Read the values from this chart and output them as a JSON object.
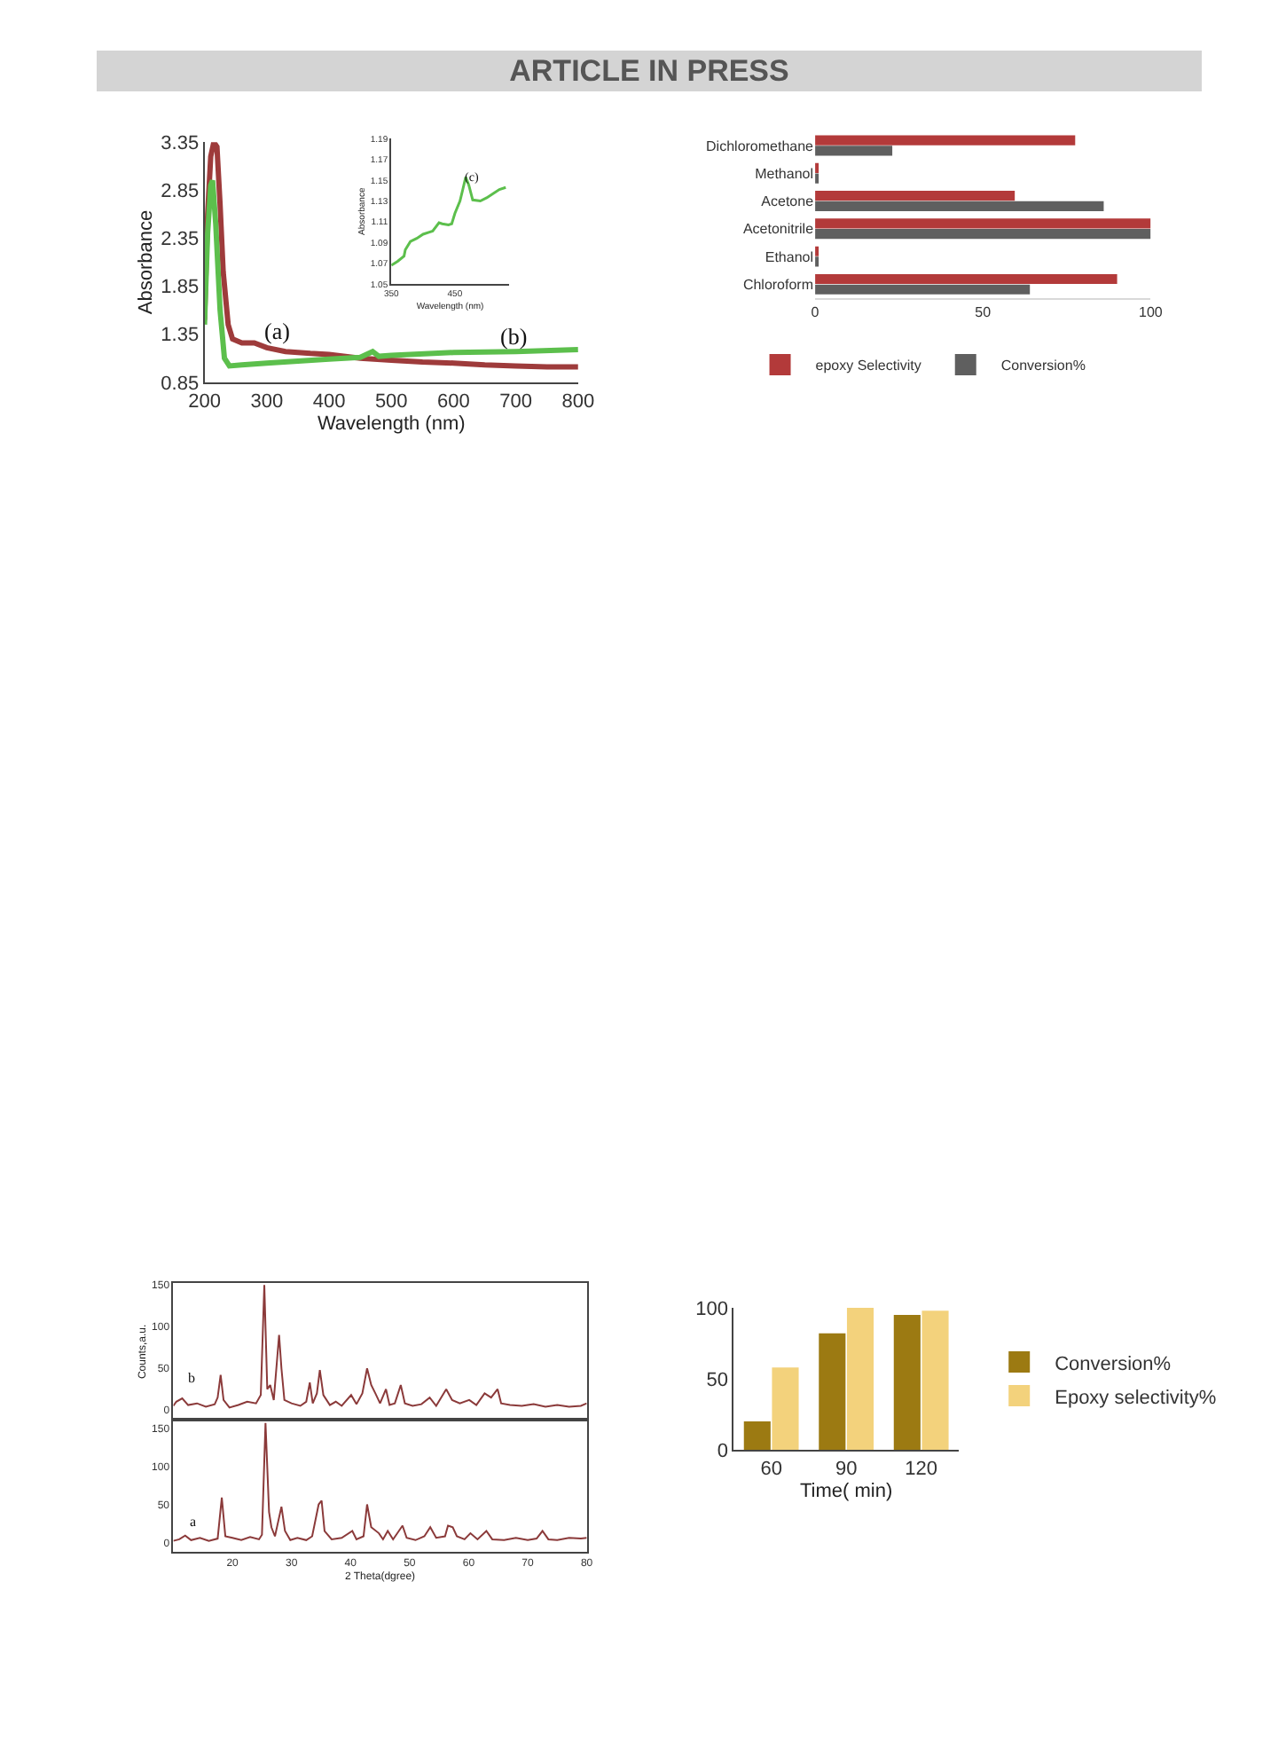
{
  "chart_data": [
    {
      "type": "line",
      "xlabel": "Wavelength (nm)",
      "ylabel": "Absorbance",
      "xlim": [
        200,
        800
      ],
      "ylim": [
        0.85,
        3.35
      ],
      "xticks": [
        200,
        300,
        400,
        500,
        600,
        700,
        800
      ],
      "yticks": [
        0.85,
        1.35,
        1.85,
        2.35,
        2.85,
        3.35
      ],
      "grid": false,
      "legend": false,
      "annotations": [
        "ARTICLE IN PRESS",
        "(a)",
        "(b)"
      ],
      "series": [
        {
          "color": "#9e3b3b",
          "x": [
            200,
            205,
            210,
            215,
            220,
            225,
            230,
            238,
            245,
            260,
            280,
            300,
            330,
            370,
            400,
            450,
            500,
            550,
            600,
            650,
            700,
            750,
            800
          ],
          "values": [
            1.5,
            2.6,
            3.2,
            3.35,
            3.3,
            2.7,
            2.0,
            1.45,
            1.3,
            1.26,
            1.26,
            1.21,
            1.17,
            1.15,
            1.14,
            1.1,
            1.08,
            1.06,
            1.05,
            1.03,
            1.02,
            1.01,
            1.01
          ]
        },
        {
          "color": "#5cbf4c",
          "x": [
            200,
            205,
            210,
            213,
            218,
            225,
            232,
            240,
            260,
            300,
            350,
            400,
            450,
            470,
            480,
            500,
            600,
            700,
            800
          ],
          "values": [
            1.45,
            2.4,
            2.9,
            2.95,
            2.5,
            1.6,
            1.1,
            1.02,
            1.03,
            1.05,
            1.07,
            1.09,
            1.11,
            1.17,
            1.12,
            1.13,
            1.16,
            1.17,
            1.19
          ]
        }
      ]
    },
    {
      "type": "line",
      "xlabel": "Wavelength (nm)",
      "ylabel": "Absorbance",
      "xlim": [
        350,
        535
      ],
      "ylim": [
        1.05,
        1.19
      ],
      "xticks": [
        350,
        450
      ],
      "yticks": [
        1.05,
        1.07,
        1.09,
        1.11,
        1.13,
        1.15,
        1.17,
        1.19
      ],
      "grid": false,
      "legend": false,
      "annotations": [
        "(c)"
      ],
      "series": [
        {
          "color": "#5cbf4c",
          "x": [
            350,
            360,
            370,
            372,
            380,
            390,
            400,
            410,
            415,
            425,
            430,
            440,
            445,
            450,
            458,
            462,
            467,
            472,
            478,
            490,
            500,
            510,
            520,
            530
          ],
          "values": [
            1.068,
            1.072,
            1.077,
            1.083,
            1.091,
            1.094,
            1.098,
            1.1,
            1.101,
            1.109,
            1.108,
            1.107,
            1.108,
            1.118,
            1.13,
            1.14,
            1.153,
            1.145,
            1.131,
            1.13,
            1.133,
            1.137,
            1.141,
            1.143
          ]
        }
      ]
    },
    {
      "type": "bar",
      "orientation": "horizontal",
      "categories": [
        "Dichloromethane",
        "Methanol",
        "Acetone",
        "Acetonitrile",
        "Ethanol",
        "Chloroform"
      ],
      "xlim": [
        0,
        100
      ],
      "xticks": [
        0,
        50,
        100
      ],
      "grid": false,
      "legend": "bottom",
      "series": [
        {
          "name": "epoxy Selectivity",
          "color": "#b33a3a",
          "values": [
            77.5,
            1,
            59.5,
            100,
            1,
            90
          ]
        },
        {
          "name": "Conversion%",
          "color": "#5f5f5f",
          "values": [
            23,
            1,
            86,
            100,
            1,
            64
          ]
        }
      ]
    },
    {
      "type": "line",
      "ylabel": "Counts,a.u.",
      "xlim": [
        10,
        80
      ],
      "ylim": [
        -12,
        152
      ],
      "xticks": [
        20,
        30,
        40,
        50,
        60,
        70,
        80
      ],
      "yticks": [
        0,
        50,
        100,
        150
      ],
      "tick_labels": "y",
      "grid": false,
      "legend": false,
      "annotations": [
        "b"
      ],
      "series": [
        {
          "color": "#8b3a3a",
          "x": [
            10,
            10.5,
            11.5,
            12.5,
            14,
            15.5,
            17,
            17.5,
            18,
            18.5,
            19.5,
            21,
            22.5,
            24,
            24.8,
            25.4,
            25.9,
            26.4,
            27,
            27.9,
            28.3,
            28.8,
            30,
            31.5,
            32.5,
            33.1,
            33.6,
            34.3,
            34.8,
            35.4,
            36.5,
            37.5,
            38.5,
            40.1,
            41,
            42,
            42.8,
            43.5,
            44.2,
            45,
            46,
            46.6,
            47.5,
            48.5,
            49.2,
            50.5,
            52,
            53.4,
            54.5,
            56.2,
            57.2,
            58.5,
            60.1,
            61.3,
            62.7,
            63.8,
            64.9,
            65.5,
            67,
            69,
            71,
            73,
            75,
            77,
            79,
            80
          ],
          "values": [
            5,
            10,
            14,
            6,
            8,
            4,
            7,
            15,
            42,
            12,
            3,
            6,
            10,
            8,
            18,
            150,
            25,
            30,
            12,
            90,
            50,
            12,
            8,
            5,
            10,
            33,
            8,
            20,
            48,
            18,
            6,
            10,
            5,
            18,
            7,
            20,
            50,
            30,
            20,
            8,
            25,
            6,
            8,
            30,
            8,
            5,
            7,
            15,
            5,
            25,
            12,
            8,
            12,
            6,
            20,
            15,
            25,
            8,
            6,
            5,
            7,
            4,
            6,
            4,
            5,
            8
          ]
        }
      ]
    },
    {
      "type": "line",
      "xlabel": "2 Theta(dgree)",
      "xlim": [
        10,
        80
      ],
      "ylim": [
        -12,
        161
      ],
      "xticks": [
        20,
        30,
        40,
        50,
        60,
        70,
        80
      ],
      "yticks": [
        0,
        50,
        100,
        150
      ],
      "grid": false,
      "legend": false,
      "annotations": [
        "a"
      ],
      "series": [
        {
          "color": "#8b3a3a",
          "x": [
            10,
            11,
            12,
            13,
            14.5,
            16,
            17.5,
            18.2,
            18.8,
            20,
            21.5,
            23,
            24.5,
            25,
            25.6,
            26.2,
            26.6,
            27.2,
            28.3,
            28.9,
            29.8,
            31,
            32.5,
            33.5,
            34.6,
            35.1,
            35.6,
            36.8,
            38.5,
            40.3,
            41,
            42.2,
            42.8,
            43.5,
            44.8,
            45.5,
            46.3,
            47.2,
            48.8,
            49.5,
            51,
            52.5,
            53.5,
            54.5,
            56,
            56.5,
            57.3,
            58,
            59.3,
            60.3,
            61.5,
            63,
            64,
            66,
            68,
            70,
            71.5,
            72.5,
            73.5,
            75,
            77,
            79,
            80
          ],
          "values": [
            2,
            4,
            9,
            3,
            6,
            2,
            5,
            59,
            8,
            6,
            3,
            7,
            4,
            10,
            157,
            40,
            20,
            8,
            47,
            15,
            3,
            6,
            3,
            8,
            50,
            55,
            15,
            4,
            6,
            15,
            4,
            8,
            50,
            20,
            12,
            4,
            15,
            4,
            22,
            6,
            3,
            8,
            20,
            6,
            8,
            22,
            20,
            8,
            4,
            12,
            4,
            15,
            4,
            3,
            6,
            3,
            5,
            15,
            4,
            3,
            6,
            5,
            6
          ]
        }
      ]
    },
    {
      "type": "bar",
      "categories": [
        "60",
        "90",
        "120"
      ],
      "xlabel": "Time( min)",
      "ylim": [
        0,
        100
      ],
      "yticks": [
        0,
        50,
        100
      ],
      "grid": false,
      "legend": "right",
      "series": [
        {
          "name": "Conversion%",
          "color": "#9c7a12",
          "values": [
            20,
            82,
            95
          ]
        },
        {
          "name": "Epoxy selectivity%",
          "color": "#f3d27c",
          "values": [
            58,
            100,
            98
          ]
        }
      ]
    }
  ]
}
